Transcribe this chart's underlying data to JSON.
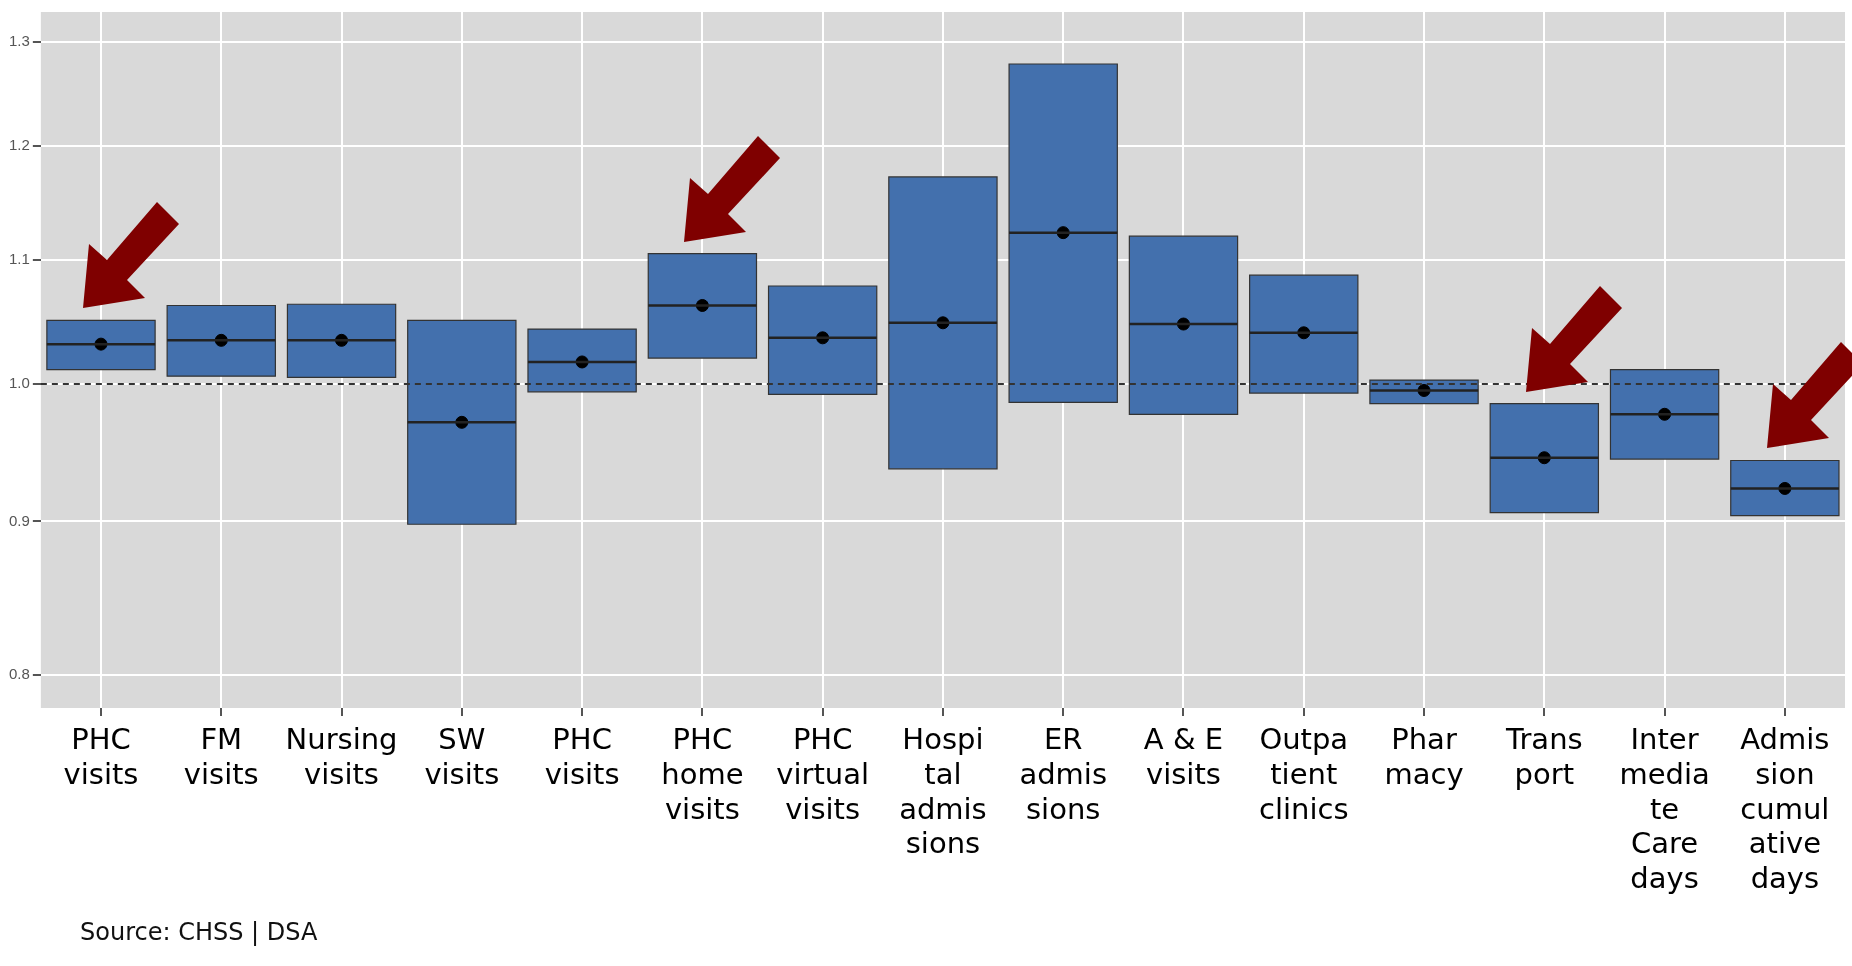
{
  "chart_data": {
    "type": "box",
    "categories": [
      "PHC\nvisits",
      "FM\nvisits",
      "Nursing\nvisits",
      "SW\nvisits",
      "PHC\nvisits",
      "PHC\nhome\nvisits",
      "PHC\nvirtual\nvisits",
      "Hospi\ntal\nadmis\nsions",
      "ER\nadmis\nsions",
      "A & E\nvisits",
      "Outpa\ntient\nclinics",
      "Phar\nmacy",
      "Trans\nport",
      "Inter\nmedia\nte\nCare\ndays",
      "Admis\nsion\ncumul\native\ndays"
    ],
    "color": "#4370ad",
    "boxes": [
      {
        "low": 1.011,
        "q1": 1.011,
        "median": 1.031,
        "q3": 1.05,
        "high": 1.05,
        "mean": 1.031
      },
      {
        "low": 1.006,
        "q1": 1.006,
        "median": 1.034,
        "q3": 1.062,
        "high": 1.062,
        "mean": 1.034
      },
      {
        "low": 1.005,
        "q1": 1.005,
        "median": 1.034,
        "q3": 1.063,
        "high": 1.063,
        "mean": 1.034
      },
      {
        "low": 0.898,
        "q1": 0.898,
        "median": 0.971,
        "q3": 1.05,
        "high": 1.05,
        "mean": 0.971
      },
      {
        "low": 0.994,
        "q1": 0.994,
        "median": 1.017,
        "q3": 1.043,
        "high": 1.043,
        "mean": 1.017
      },
      {
        "low": 1.02,
        "q1": 1.02,
        "median": 1.062,
        "q3": 1.105,
        "high": 1.105,
        "mean": 1.062
      },
      {
        "low": 0.992,
        "q1": 0.992,
        "median": 1.036,
        "q3": 1.078,
        "high": 1.078,
        "mean": 1.036
      },
      {
        "low": 0.937,
        "q1": 0.937,
        "median": 1.048,
        "q3": 1.172,
        "high": 1.172,
        "mean": 1.048
      },
      {
        "low": 0.986,
        "q1": 0.986,
        "median": 1.123,
        "q3": 1.278,
        "high": 1.278,
        "mean": 1.123
      },
      {
        "low": 0.977,
        "q1": 0.977,
        "median": 1.047,
        "q3": 1.12,
        "high": 1.12,
        "mean": 1.047
      },
      {
        "low": 0.993,
        "q1": 0.993,
        "median": 1.04,
        "q3": 1.087,
        "high": 1.087,
        "mean": 1.04
      },
      {
        "low": 0.985,
        "q1": 0.985,
        "median": 0.995,
        "q3": 1.003,
        "high": 1.003,
        "mean": 0.995
      },
      {
        "low": 0.906,
        "q1": 0.906,
        "median": 0.945,
        "q3": 0.985,
        "high": 0.985,
        "mean": 0.945
      },
      {
        "low": 0.944,
        "q1": 0.944,
        "median": 0.977,
        "q3": 1.011,
        "high": 1.011,
        "mean": 0.977
      },
      {
        "low": 0.904,
        "q1": 0.904,
        "median": 0.923,
        "q3": 0.943,
        "high": 0.943,
        "mean": 0.923
      }
    ],
    "log": true,
    "ylim": [
      0.78,
      1.33
    ],
    "yticks": [
      {
        "value": 0.8,
        "label": "0.8"
      },
      {
        "value": 0.9,
        "label": "0.9"
      },
      {
        "value": 1.0,
        "label": "1.0"
      },
      {
        "value": 1.1,
        "label": "1.1"
      },
      {
        "value": 1.2,
        "label": "1.2"
      },
      {
        "value": 1.3,
        "label": "1.3"
      }
    ],
    "grid": true,
    "legend": false,
    "ref_lines": [
      {
        "axis": "y",
        "value": 1.0,
        "line_style": "dashed",
        "color": "#333333"
      }
    ],
    "annotations": [
      "Source: CHSS | DSA"
    ]
  }
}
